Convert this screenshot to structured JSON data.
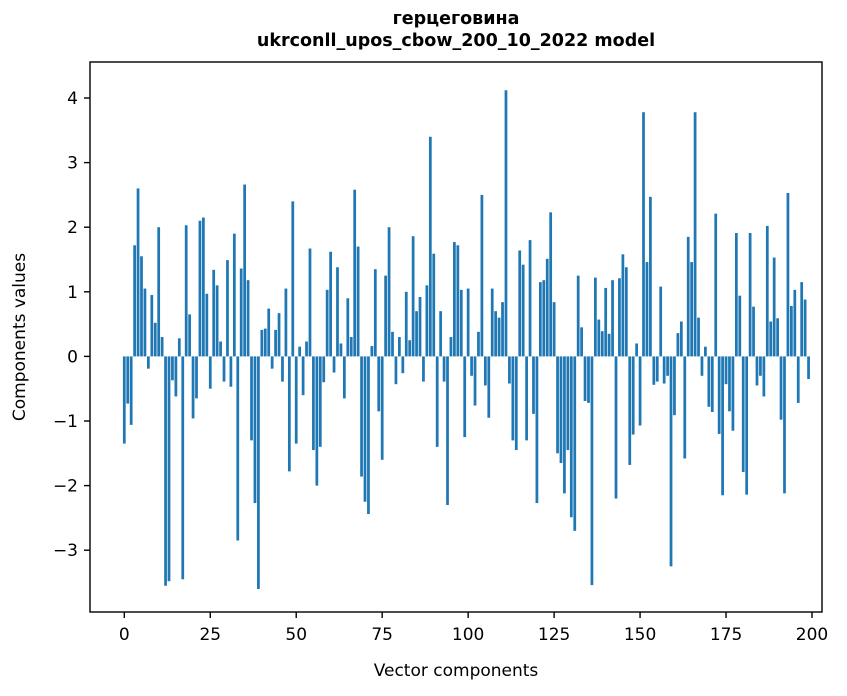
{
  "chart_data": {
    "type": "bar",
    "title_line1": "герцеговина",
    "title_line2": "ukrconll_upos_cbow_200_10_2022 model",
    "xlabel": "Vector components",
    "ylabel": "Components values",
    "bar_color": "#1f77b4",
    "axis_color": "#000000",
    "background_color": "#ffffff",
    "n_components": 200,
    "xlim": [
      -11,
      210
    ],
    "ylim": [
      -3.96,
      4.56
    ],
    "grid": false,
    "legend": "none",
    "xtick_values": [
      0,
      25,
      50,
      75,
      100,
      125,
      150,
      175,
      200
    ],
    "xtick_labels": [
      "0",
      "25",
      "50",
      "75",
      "100",
      "125",
      "150",
      "175",
      "200"
    ],
    "ytick_values": [
      -3,
      -2,
      -1,
      0,
      1,
      2,
      3,
      4
    ],
    "ytick_labels": [
      "−3",
      "−2",
      "−1",
      "0",
      "1",
      "2",
      "3",
      "4"
    ],
    "values": [
      -1.35,
      -0.73,
      -1.06,
      1.72,
      2.6,
      1.55,
      1.05,
      -0.19,
      0.95,
      0.52,
      2.0,
      0.3,
      -3.55,
      -3.48,
      -0.37,
      -0.62,
      0.28,
      -3.45,
      2.03,
      0.65,
      -0.96,
      -0.65,
      2.1,
      2.15,
      0.97,
      -0.5,
      1.34,
      1.1,
      0.23,
      -0.39,
      1.49,
      -0.47,
      1.9,
      -2.85,
      1.36,
      2.66,
      1.18,
      -1.3,
      -2.27,
      -3.6,
      0.41,
      0.43,
      0.74,
      -0.19,
      0.41,
      0.67,
      -0.39,
      1.05,
      -1.78,
      2.4,
      -1.35,
      0.15,
      -0.6,
      0.23,
      1.67,
      -1.45,
      -2.0,
      -1.4,
      -0.4,
      1.03,
      1.62,
      -0.25,
      1.38,
      0.2,
      -0.65,
      0.9,
      0.3,
      2.58,
      1.7,
      -1.86,
      -2.25,
      -2.44,
      0.16,
      1.35,
      -0.85,
      -1.6,
      1.25,
      2.0,
      0.38,
      -0.43,
      0.3,
      -0.26,
      1.0,
      0.25,
      1.86,
      0.7,
      0.92,
      -0.39,
      1.1,
      3.4,
      1.59,
      -1.4,
      0.7,
      -0.39,
      -2.3,
      0.3,
      1.77,
      1.72,
      1.03,
      -1.25,
      1.05,
      -0.3,
      -0.76,
      0.38,
      2.5,
      -0.45,
      -0.95,
      1.05,
      0.7,
      0.6,
      0.84,
      4.12,
      -0.42,
      -1.3,
      -1.45,
      1.64,
      1.42,
      -1.3,
      1.8,
      -0.89,
      -2.27,
      1.15,
      1.18,
      1.51,
      2.23,
      0.84,
      -1.5,
      -1.65,
      -2.12,
      -1.45,
      -2.49,
      -2.7,
      1.25,
      0.45,
      -0.69,
      -0.72,
      -3.54,
      1.22,
      0.57,
      0.39,
      1.06,
      0.35,
      1.18,
      -2.2,
      1.21,
      1.58,
      1.38,
      -1.68,
      -1.21,
      0.2,
      -1.07,
      3.78,
      1.46,
      2.47,
      -0.44,
      -0.39,
      1.08,
      -0.42,
      -0.3,
      -3.25,
      -0.91,
      0.36,
      0.54,
      -1.58,
      1.85,
      1.46,
      3.78,
      0.6,
      -0.3,
      0.15,
      -0.78,
      -0.86,
      2.21,
      -1.2,
      -2.15,
      -0.43,
      -0.85,
      -1.15,
      1.91,
      0.94,
      -1.79,
      -2.14,
      1.91,
      0.77,
      -0.45,
      -0.3,
      -0.62,
      2.02,
      0.54,
      1.53,
      0.59,
      -0.98,
      -2.12,
      2.53,
      0.78,
      1.03,
      -0.72,
      1.15,
      0.88,
      -0.35
    ]
  }
}
